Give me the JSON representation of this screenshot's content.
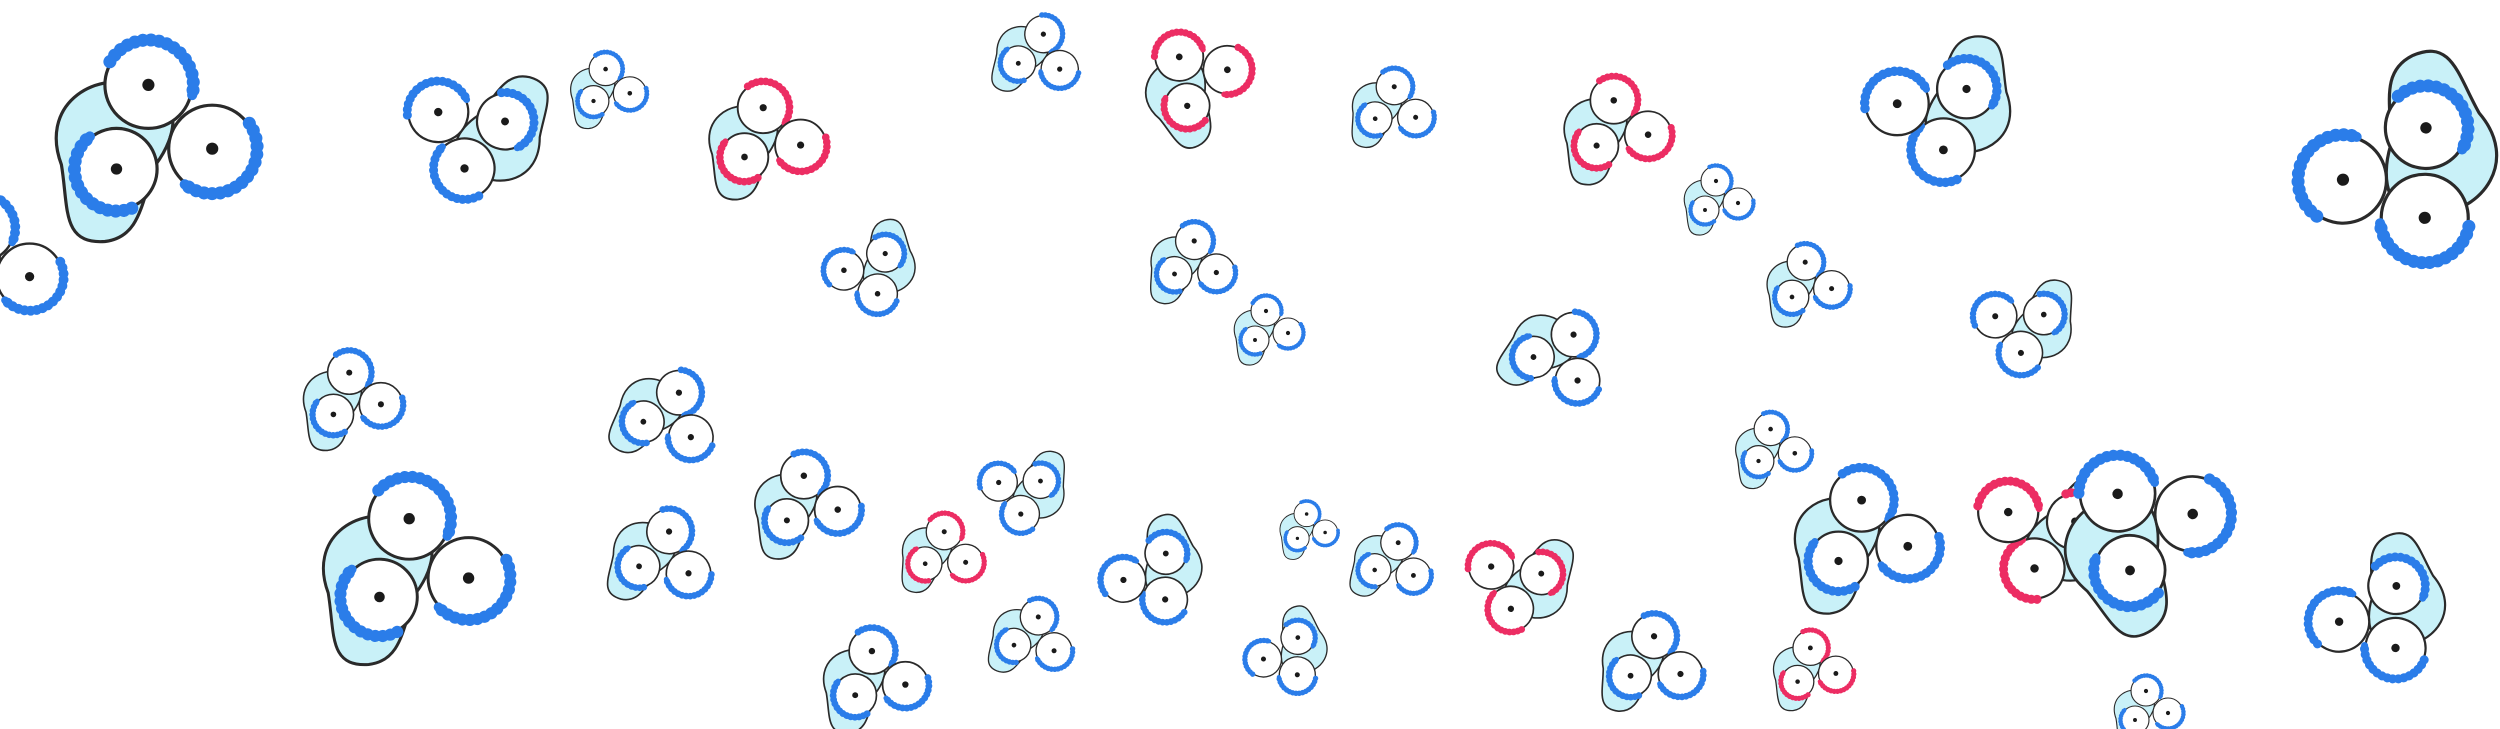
{
  "palette": {
    "background": "#ffffff",
    "cell_fill": "#c9f1f8",
    "outline": "#2a2a2a",
    "blue_molecule": "#2b7de9",
    "red_molecule": "#ec2d63"
  },
  "clusters": [
    {
      "kind": "blue",
      "variant": 0
    },
    {
      "kind": "blue",
      "variant": 1
    },
    {
      "kind": "red",
      "variant": 2
    },
    {
      "kind": "blue",
      "variant": 3
    },
    {
      "kind": "red",
      "variant": 0
    },
    {
      "kind": "blue",
      "variant": 1
    },
    {
      "kind": "red",
      "variant": 2
    },
    {
      "kind": "blue",
      "variant": 3
    },
    {
      "kind": "blue",
      "variant": 0
    },
    {
      "kind": "blue",
      "variant": 1
    },
    {
      "kind": "blue",
      "variant": 2
    },
    {
      "kind": "blue",
      "variant": 3
    },
    {
      "kind": "blue",
      "variant": 0
    },
    {
      "kind": "blue",
      "variant": 1
    },
    {
      "kind": "blue",
      "variant": 2
    },
    {
      "kind": "blue",
      "variant": 3
    },
    {
      "kind": "blue",
      "variant": 0
    },
    {
      "kind": "blue",
      "variant": 1
    },
    {
      "kind": "blue",
      "variant": 2
    },
    {
      "kind": "blue",
      "variant": 3
    },
    {
      "kind": "red",
      "variant": 0
    },
    {
      "kind": "blue",
      "variant": 1
    },
    {
      "kind": "blue",
      "variant": 2
    },
    {
      "kind": "blue",
      "variant": 3
    },
    {
      "kind": "blue",
      "variant": 0
    },
    {
      "kind": "red",
      "variant": 1
    },
    {
      "kind": "blue",
      "variant": 2
    },
    {
      "kind": "red",
      "variant": 3
    },
    {
      "kind": "blue",
      "variant": 0
    },
    {
      "kind": "blue",
      "variant": 1
    },
    {
      "kind": "blue",
      "variant": 2
    },
    {
      "kind": "red",
      "variant": 3
    },
    {
      "kind": "blue",
      "variant": 0
    },
    {
      "kind": "blue",
      "variant": 1
    },
    {
      "kind": "blue",
      "variant": 2
    },
    {
      "kind": "blue",
      "variant": 3
    },
    {
      "kind": "blue",
      "variant": 0
    },
    {
      "kind": "blue",
      "variant": 1
    },
    {
      "kind": "blue",
      "variant": 2
    },
    {
      "kind": "blue",
      "variant": 3
    }
  ]
}
